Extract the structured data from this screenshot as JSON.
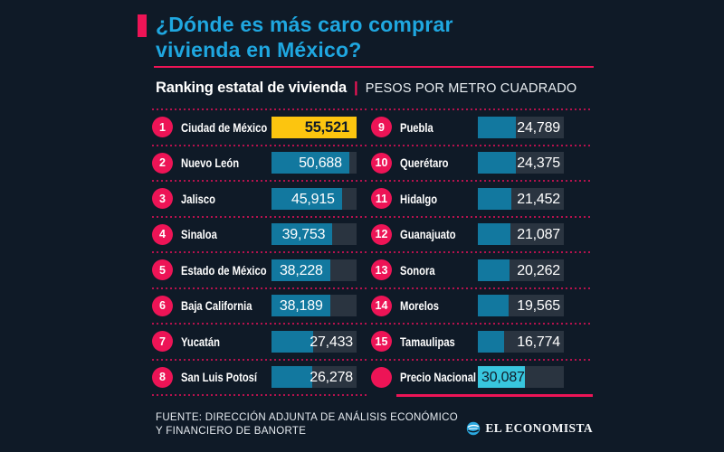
{
  "header": {
    "title_line1": "¿Dónde es más caro comprar",
    "title_line2": "vivienda en México?",
    "subtitle_bold": "Ranking estatal de vivienda",
    "subtitle_divider": "|",
    "subtitle_light": "PESOS POR METRO CUADRADO"
  },
  "footer": {
    "source_line1": "FUENTE: DIRECCIÓN ADJUNTA DE ANÁLISIS ECONÓMICO",
    "source_line2": "Y FINANCIERO DE BANORTE",
    "brand": "EL ECONOMISTA"
  },
  "colors": {
    "background": "#0f1a27",
    "accent_pink": "#ed1456",
    "title_cyan": "#1fa7e0",
    "bar_teal": "#12789f",
    "bar_yellow": "#fcc50f",
    "bar_cyan": "#38c6de",
    "bar_track": "#2a3440",
    "dot_separator": "#b5124d"
  },
  "chart_data": {
    "type": "bar",
    "title": "¿Dónde es más caro comprar vivienda en México?",
    "subtitle": "Ranking estatal de vivienda | PESOS POR METRO CUADRADO",
    "unit": "pesos por metro cuadrado",
    "max_scale": 55521,
    "source": "FUENTE: DIRECCIÓN ADJUNTA DE ANÁLISIS ECONÓMICO Y FINANCIERO DE BANORTE",
    "items": [
      {
        "rank": "1",
        "label": "Ciudad de México",
        "value": 55521,
        "display": "55,521",
        "bar": "yellow",
        "val_style": "dark_bold",
        "column": "left"
      },
      {
        "rank": "2",
        "label": "Nuevo León",
        "value": 50688,
        "display": "50,688",
        "bar": "teal",
        "val_style": "light",
        "column": "left"
      },
      {
        "rank": "3",
        "label": "Jalisco",
        "value": 45915,
        "display": "45,915",
        "bar": "teal",
        "val_style": "light",
        "column": "left"
      },
      {
        "rank": "4",
        "label": "Sinaloa",
        "value": 39753,
        "display": "39,753",
        "bar": "teal",
        "val_style": "light",
        "column": "left"
      },
      {
        "rank": "5",
        "label": "Estado de México",
        "value": 38228,
        "display": "38,228",
        "bar": "teal",
        "val_style": "light",
        "column": "left"
      },
      {
        "rank": "6",
        "label": "Baja California",
        "value": 38189,
        "display": "38,189",
        "bar": "teal",
        "val_style": "light",
        "column": "left"
      },
      {
        "rank": "7",
        "label": "Yucatán",
        "value": 27433,
        "display": "27,433",
        "bar": "teal",
        "val_style": "light",
        "column": "left"
      },
      {
        "rank": "8",
        "label": "San Luis Potosí",
        "value": 26278,
        "display": "26,278",
        "bar": "teal",
        "val_style": "light",
        "column": "left"
      },
      {
        "rank": "9",
        "label": "Puebla",
        "value": 24789,
        "display": "24,789",
        "bar": "teal",
        "val_style": "light",
        "column": "right"
      },
      {
        "rank": "10",
        "label": "Querétaro",
        "value": 24375,
        "display": "24,375",
        "bar": "teal",
        "val_style": "light",
        "column": "right"
      },
      {
        "rank": "11",
        "label": "Hidalgo",
        "value": 21452,
        "display": "21,452",
        "bar": "teal",
        "val_style": "light",
        "column": "right"
      },
      {
        "rank": "12",
        "label": "Guanajuato",
        "value": 21087,
        "display": "21,087",
        "bar": "teal",
        "val_style": "light",
        "column": "right"
      },
      {
        "rank": "13",
        "label": "Sonora",
        "value": 20262,
        "display": "20,262",
        "bar": "teal",
        "val_style": "light",
        "column": "right"
      },
      {
        "rank": "14",
        "label": "Morelos",
        "value": 19565,
        "display": "19,565",
        "bar": "teal",
        "val_style": "light",
        "column": "right"
      },
      {
        "rank": "15",
        "label": "Tamaulipas",
        "value": 16774,
        "display": "16,774",
        "bar": "teal",
        "val_style": "light",
        "column": "right"
      },
      {
        "rank": "",
        "label": "Precio Nacional",
        "value": 30087,
        "display": "30,087",
        "bar": "cyan",
        "val_style": "dark_left",
        "column": "right",
        "final_rule": true
      }
    ]
  }
}
